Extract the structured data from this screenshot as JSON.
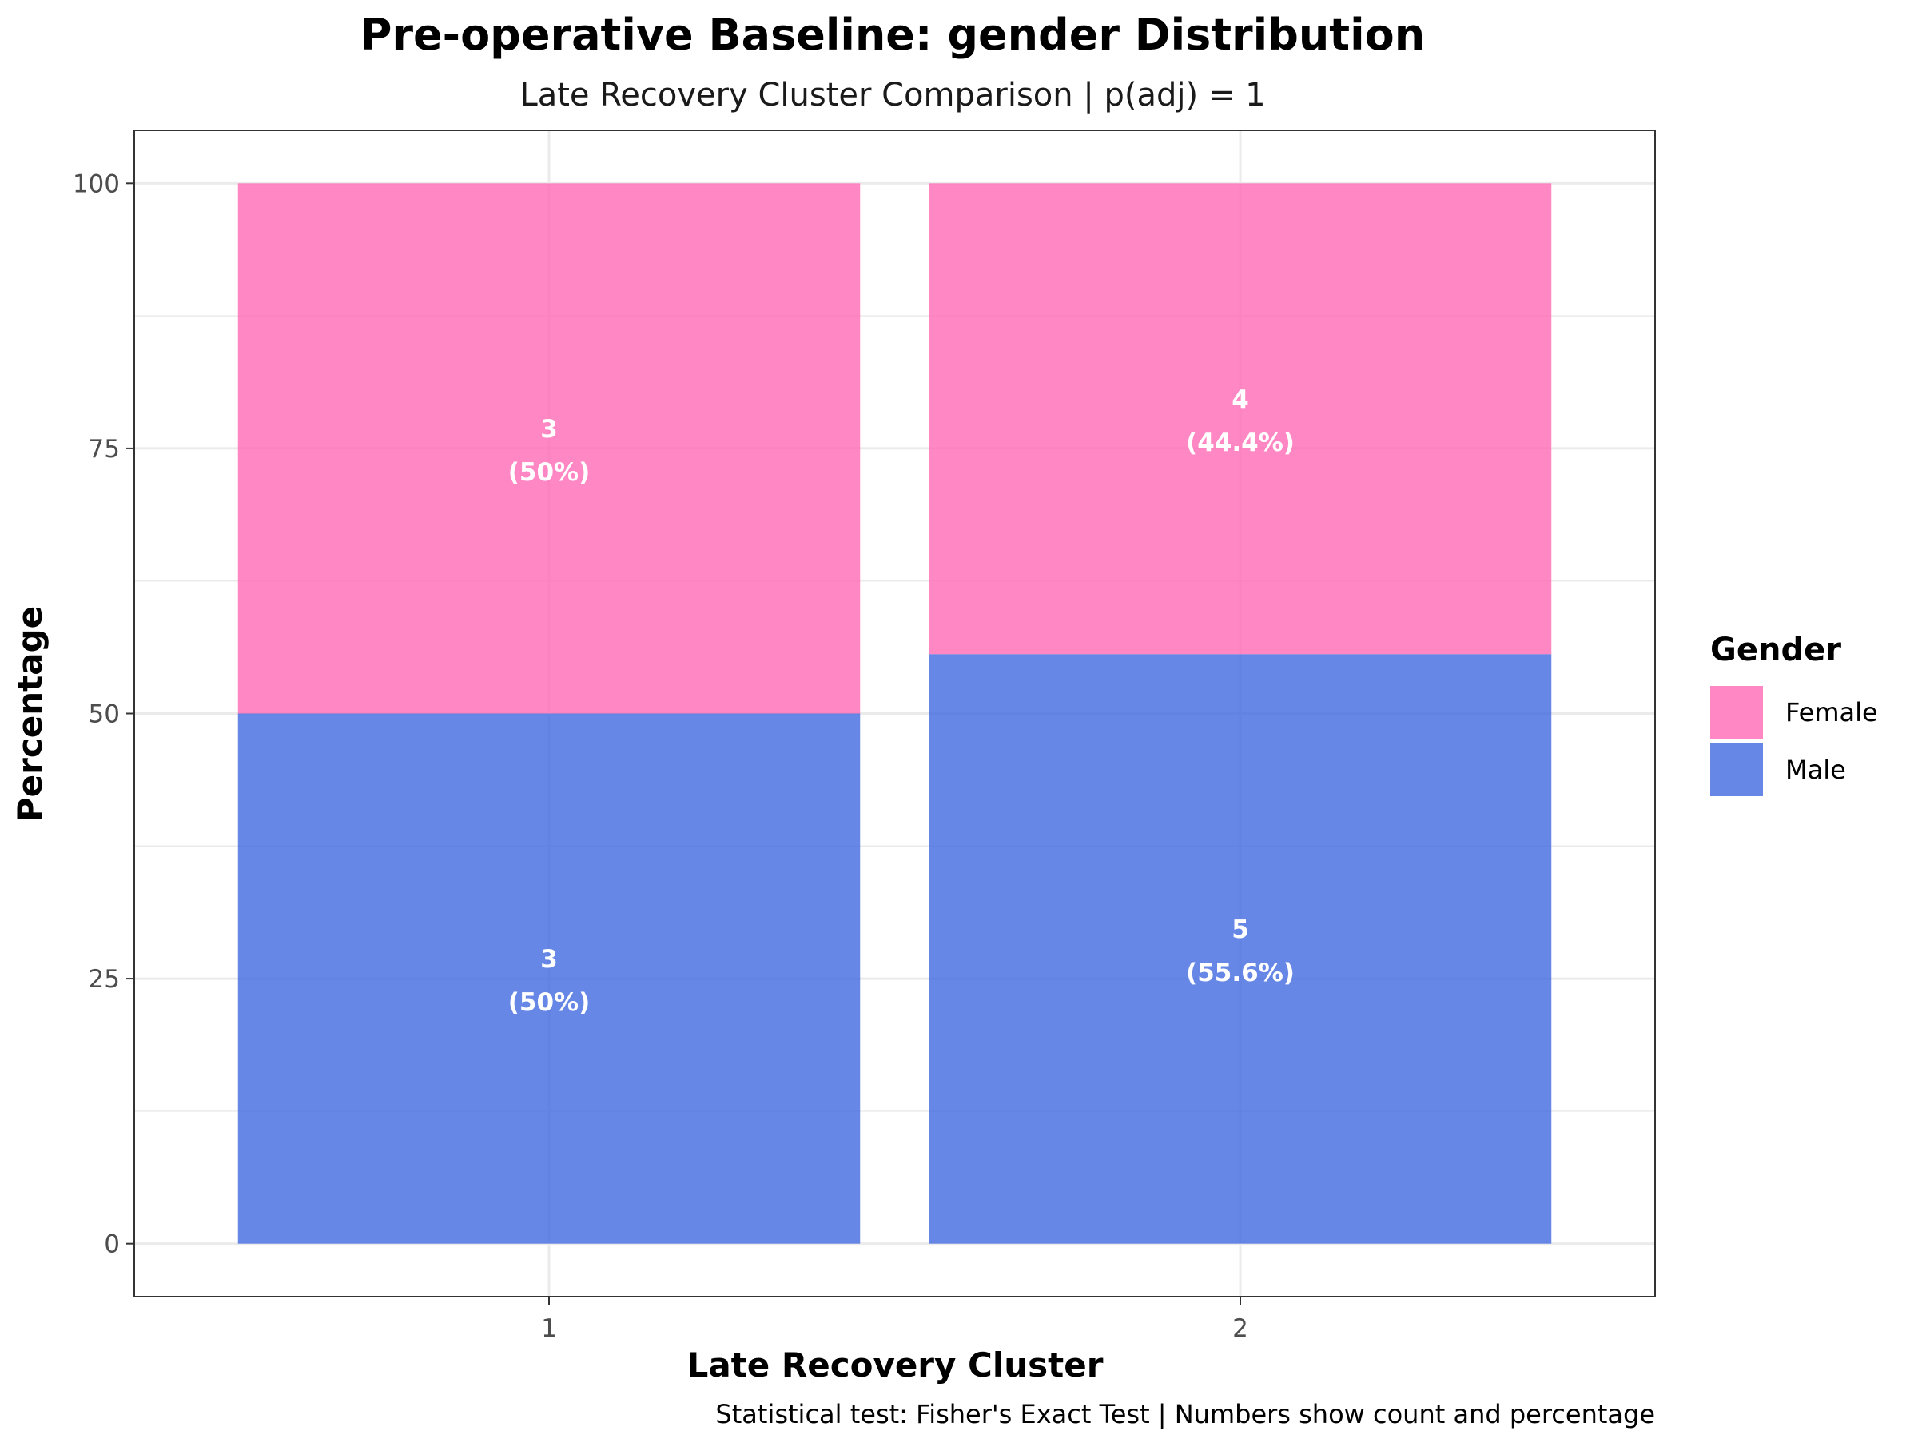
{
  "chart_data": {
    "type": "bar",
    "stacked": true,
    "title": "Pre-operative Baseline: gender Distribution",
    "subtitle": "Late Recovery Cluster Comparison | p(adj) = 1",
    "xlabel": "Late Recovery Cluster",
    "ylabel": "Percentage",
    "caption": "Statistical test: Fisher's Exact Test | Numbers show count and percentage",
    "categories": [
      "1",
      "2"
    ],
    "ylim": [
      -5,
      105
    ],
    "yticks": [
      0,
      25,
      50,
      75,
      100
    ],
    "grid": true,
    "legend": {
      "title": "Gender",
      "position": "right"
    },
    "series": [
      {
        "name": "Male",
        "color": "#4169E1",
        "values": [
          50,
          55.6
        ],
        "counts": [
          3,
          5
        ],
        "labels": [
          [
            "3",
            "(50%)"
          ],
          [
            "5",
            "(55.6%)"
          ]
        ]
      },
      {
        "name": "Female",
        "color": "#FF69B4",
        "values": [
          50,
          44.4
        ],
        "counts": [
          3,
          4
        ],
        "labels": [
          [
            "3",
            "(50%)"
          ],
          [
            "4",
            "(44.4%)"
          ]
        ]
      }
    ],
    "legend_order": [
      "Female",
      "Male"
    ]
  }
}
